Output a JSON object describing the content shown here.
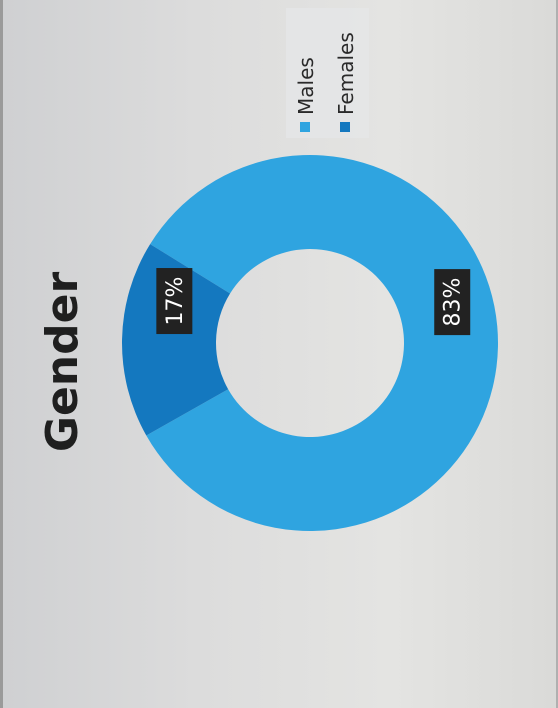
{
  "title": "Gender",
  "colors": {
    "males": "#2fa4e0",
    "females": "#1478bf",
    "label_bg": "#222222"
  },
  "chart_data": {
    "type": "pie",
    "style": "donut",
    "title": "Gender",
    "categories": [
      "Males",
      "Females"
    ],
    "values": [
      83,
      17
    ],
    "value_labels": [
      "83%",
      "17%"
    ],
    "legend": {
      "placement": "top-right",
      "entries": [
        "Males",
        "Females"
      ]
    }
  }
}
